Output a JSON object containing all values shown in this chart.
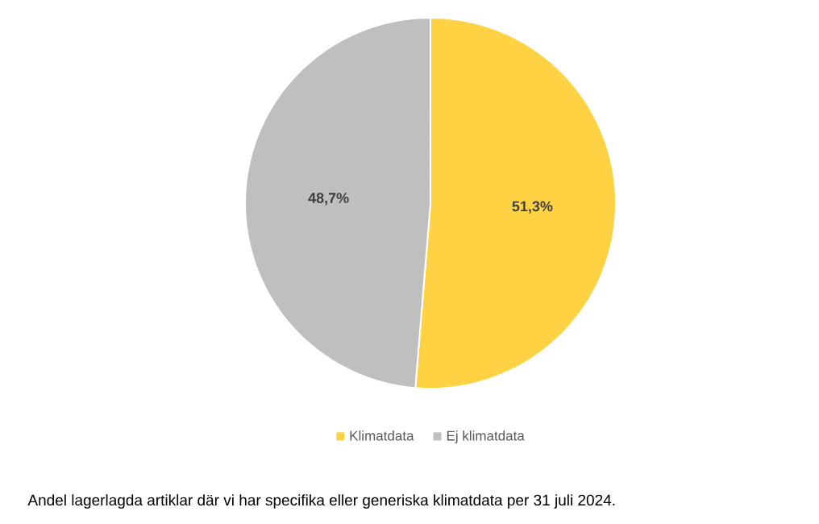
{
  "chart_data": {
    "type": "pie",
    "categories": [
      "Klimatdata",
      "Ej klimatdata"
    ],
    "values": [
      51.3,
      48.7
    ],
    "value_labels": [
      "51,3%",
      "48,7%"
    ],
    "colors": [
      "#ffd243",
      "#bfbfbf"
    ],
    "legend": "bottom",
    "annotations": [
      "Andel lagerlagda artiklar där vi har specifika eller generiska klimatdata per 31 juli 2024."
    ]
  }
}
